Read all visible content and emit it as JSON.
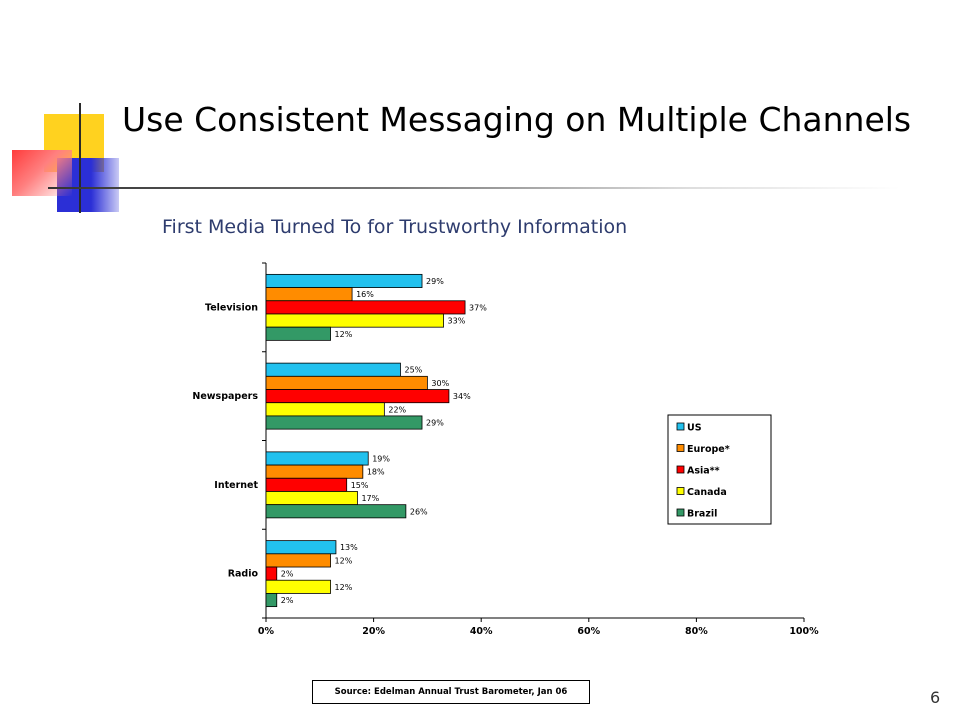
{
  "slide": {
    "title": "Use Consistent Messaging on Multiple Channels",
    "subtitle": "First Media Turned To for Trustworthy Information",
    "source": "Source: Edelman Annual Trust Barometer, Jan 06",
    "page_number": "6"
  },
  "colors": {
    "subtitle": "#2e3c6e"
  },
  "chart_data": {
    "type": "bar",
    "orientation": "horizontal",
    "title": "First Media Turned To for Trustworthy Information",
    "categories": [
      "Television",
      "Newspapers",
      "Internet",
      "Radio"
    ],
    "series": [
      {
        "name": "US",
        "color": "#22c1ee",
        "values": [
          29,
          25,
          19,
          13
        ]
      },
      {
        "name": "Europe*",
        "color": "#ff8c00",
        "values": [
          16,
          30,
          18,
          12
        ]
      },
      {
        "name": "Asia**",
        "color": "#ff0000",
        "values": [
          37,
          34,
          15,
          2
        ]
      },
      {
        "name": "Canada",
        "color": "#ffff00",
        "values": [
          33,
          22,
          17,
          12
        ]
      },
      {
        "name": "Brazil",
        "color": "#339966",
        "values": [
          12,
          29,
          26,
          2
        ]
      }
    ],
    "value_labels": [
      [
        "29%",
        "25%",
        "19%",
        "13%"
      ],
      [
        "16%",
        "30%",
        "18%",
        "12%"
      ],
      [
        "37%",
        "34%",
        "15%",
        "2%"
      ],
      [
        "33%",
        "22%",
        "17%",
        "12%"
      ],
      [
        "12%",
        "29%",
        "26%",
        "2%"
      ]
    ],
    "x_ticks": [
      "0%",
      "20%",
      "40%",
      "60%",
      "80%",
      "100%"
    ],
    "xlim": [
      0,
      100
    ],
    "legend_position": "right",
    "grid": false
  }
}
